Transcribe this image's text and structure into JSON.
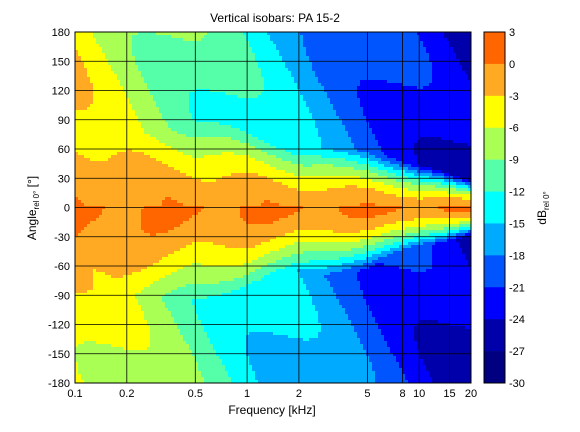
{
  "chart_data": {
    "type": "heatmap",
    "title": "Vertical isobars: PA 15-2",
    "xlabel": "Frequency [kHz]",
    "ylabel_main": "Angle",
    "ylabel_sub": "rel 0°",
    "ylabel_unit": " [°]",
    "colorbar_label_main": "dB",
    "colorbar_label_sub": "rel 0°",
    "x_scale": "log",
    "xlim": [
      0.1,
      20
    ],
    "ylim": [
      -180,
      180
    ],
    "x_ticks": [
      0.1,
      0.2,
      0.5,
      1,
      2,
      5,
      8,
      10,
      15,
      20
    ],
    "x_tick_labels": [
      "0.1",
      "0.2",
      "0.5",
      "1",
      "2",
      "5",
      "8",
      "10",
      "15",
      "20"
    ],
    "y_ticks": [
      180,
      150,
      120,
      90,
      60,
      30,
      0,
      -30,
      -60,
      -90,
      -120,
      -150,
      -180
    ],
    "y_tick_labels": [
      "180",
      "150",
      "120",
      "90",
      "60",
      "30",
      "0",
      "-30",
      "-60",
      "-90",
      "-120",
      "-150",
      "-180"
    ],
    "grid": true,
    "colorbar": {
      "levels": [
        3,
        0,
        -3,
        -6,
        -9,
        -12,
        -15,
        -18,
        -21,
        -24,
        -27,
        -30
      ],
      "tick_labels": [
        "3",
        "0",
        "-3",
        "-6",
        "-9",
        "-12",
        "-15",
        "-18",
        "-21",
        "-24",
        "-27",
        "-30"
      ],
      "colors": [
        "#ff6600",
        "#ffaa22",
        "#ffff00",
        "#aaff55",
        "#55ffaa",
        "#00ffff",
        "#00aaff",
        "#0055ff",
        "#0000ff",
        "#0000aa",
        "#000080"
      ]
    },
    "beamwidth_half_angle_deg": [
      {
        "f": 0.1,
        "w": 75
      },
      {
        "f": 0.2,
        "w": 58
      },
      {
        "f": 0.5,
        "w": 40
      },
      {
        "f": 1,
        "w": 35
      },
      {
        "f": 2,
        "w": 25
      },
      {
        "f": 5,
        "w": 20
      },
      {
        "f": 10,
        "w": 13
      },
      {
        "f": 20,
        "w": 8
      }
    ]
  }
}
